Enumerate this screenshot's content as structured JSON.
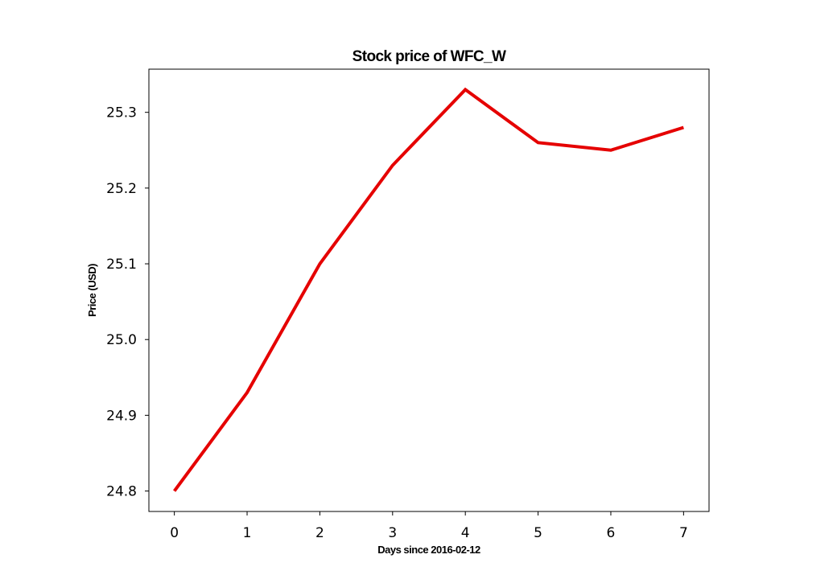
{
  "chart_data": {
    "type": "line",
    "title": "Stock price of WFC_W",
    "xlabel": "Days since 2016-02-12",
    "ylabel": "Price (USD)",
    "x": [
      0,
      1,
      2,
      3,
      4,
      5,
      6,
      7
    ],
    "series": [
      {
        "color": "#e50000",
        "values": [
          24.8,
          24.93,
          25.1,
          25.23,
          25.33,
          25.26,
          25.25,
          25.28
        ]
      }
    ],
    "x_ticks": [
      0,
      1,
      2,
      3,
      4,
      5,
      6,
      7
    ],
    "x_tick_labels": [
      "0",
      "1",
      "2",
      "3",
      "4",
      "5",
      "6",
      "7"
    ],
    "y_ticks": [
      24.8,
      24.9,
      25.0,
      25.1,
      25.2,
      25.3
    ],
    "y_tick_labels": [
      "24.8",
      "24.9",
      "25.0",
      "25.1",
      "25.2",
      "25.3"
    ],
    "xlim": [
      -0.35,
      7.35
    ],
    "ylim": [
      24.773,
      25.357
    ],
    "grid": false,
    "legend": "none"
  }
}
